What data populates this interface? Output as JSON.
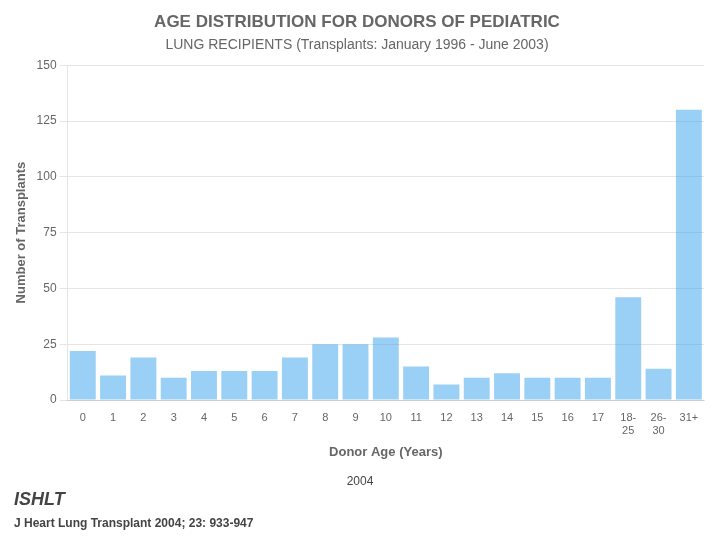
{
  "chart_data": {
    "type": "bar",
    "title": "AGE DISTRIBUTION FOR DONORS OF PEDIATRIC",
    "subtitle": "LUNG RECIPIENTS (Transplants: January 1996 - June 2003)",
    "xlabel": "Donor Age (Years)",
    "ylabel": "Number of Transplants",
    "categories": [
      "0",
      "1",
      "2",
      "3",
      "4",
      "5",
      "6",
      "7",
      "8",
      "9",
      "10",
      "11",
      "12",
      "13",
      "14",
      "15",
      "16",
      "17",
      "18-\n25",
      "26-\n30",
      "31+"
    ],
    "values": [
      22,
      11,
      19,
      10,
      13,
      13,
      13,
      19,
      25,
      25,
      28,
      15,
      7,
      10,
      12,
      10,
      10,
      10,
      46,
      14,
      130
    ],
    "ylim": [
      0,
      150
    ],
    "yticks": [
      0,
      25,
      50,
      75,
      100,
      125,
      150
    ],
    "grid": true,
    "annotations": [
      "2004",
      "ISHLT",
      "J Heart Lung Transplant 2004; 23: 933-947"
    ]
  }
}
